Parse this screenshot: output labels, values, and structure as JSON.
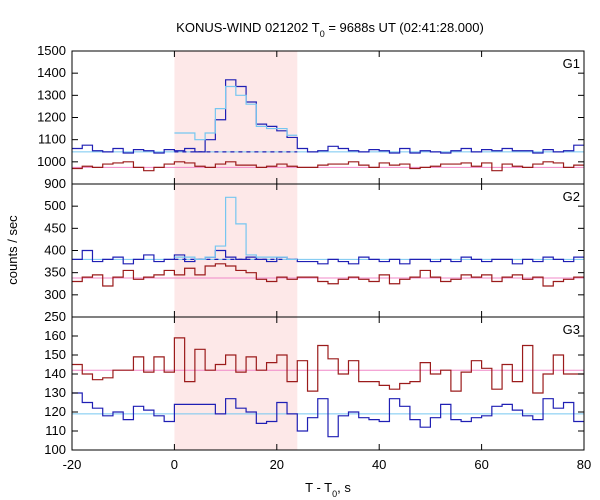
{
  "chart_data": {
    "type": "line",
    "title": {
      "prefix": "KONUS-WIND 021202 T",
      "sub": "0",
      "suffix": " = 9688s UT (02:41:28.000)"
    },
    "xlabel": {
      "prefix": "T - T",
      "sub": "0",
      "suffix": ", s"
    },
    "ylabel": "counts / sec",
    "xlim": [
      -20,
      80
    ],
    "x_ticks": [
      -20,
      0,
      20,
      40,
      60,
      80
    ],
    "highlight_interval": [
      0,
      24
    ],
    "colors": {
      "highlight": "#fde8e8",
      "dark_blue": "#1f1fb4",
      "light_blue": "#76c6f0",
      "dark_red": "#9b1b1b",
      "background_line_red": "#f088c8"
    },
    "panels": [
      {
        "name": "G1",
        "ylim": [
          900,
          1500
        ],
        "y_ticks": [
          900,
          1000,
          1100,
          1200,
          1300,
          1400,
          1500
        ],
        "background_level": 1045,
        "upper_background_level": 1045,
        "lower_background_level": 975,
        "step_x": [
          -20,
          -18,
          -16,
          -14,
          -12,
          -10,
          -8,
          -6,
          -4,
          -2,
          0,
          2,
          4,
          6,
          8,
          10,
          12,
          14,
          16,
          18,
          20,
          22,
          24,
          26,
          28,
          30,
          32,
          34,
          36,
          38,
          40,
          42,
          44,
          46,
          48,
          50,
          52,
          54,
          56,
          58,
          60,
          62,
          64,
          66,
          68,
          70,
          72,
          74,
          76,
          78,
          80
        ],
        "series": [
          {
            "name": "upper",
            "values": [
              1060,
              1075,
              1050,
              1045,
              1060,
              1040,
              1055,
              1050,
              1040,
              1055,
              1050,
              1060,
              1045,
              1100,
              1190,
              1370,
              1340,
              1270,
              1170,
              1160,
              1140,
              1110,
              1060,
              1045,
              1050,
              1070,
              1060,
              1050,
              1045,
              1055,
              1050,
              1040,
              1060,
              1040,
              1050,
              1045,
              1040,
              1050,
              1060,
              1045,
              1055,
              1050,
              1060,
              1050,
              1050,
              1040,
              1055,
              1045,
              1050,
              1075
            ]
          },
          {
            "name": "lower",
            "values": [
              970,
              980,
              975,
              990,
              995,
              1000,
              975,
              960,
              975,
              990,
              1000,
              995,
              980,
              975,
              990,
              1000,
              985,
              985,
              975,
              980,
              990,
              980,
              975,
              975,
              985,
              990,
              990,
              1000,
              985,
              975,
              995,
              985,
              990,
              970,
              975,
              980,
              990,
              990,
              995,
              980,
              995,
              960,
              990,
              980,
              975,
              990,
              1000,
              995,
              975,
              985
            ]
          },
          {
            "name": "burst",
            "interval": [
              0,
              24
            ],
            "values": [
              1130,
              1130,
              1100,
              1130,
              1240,
              1340,
              1300,
              1260,
              1160,
              1150,
              1150,
              1120
            ]
          }
        ]
      },
      {
        "name": "G2",
        "ylim": [
          250,
          550
        ],
        "y_ticks": [
          250,
          300,
          350,
          400,
          450,
          500
        ],
        "background_level": 380,
        "upper_background_level": 380,
        "lower_background_level": 338,
        "step_x": [
          -20,
          -18,
          -16,
          -14,
          -12,
          -10,
          -8,
          -6,
          -4,
          -2,
          0,
          2,
          4,
          6,
          8,
          10,
          12,
          14,
          16,
          18,
          20,
          22,
          24,
          26,
          28,
          30,
          32,
          34,
          36,
          38,
          40,
          42,
          44,
          46,
          48,
          50,
          52,
          54,
          56,
          58,
          60,
          62,
          64,
          66,
          68,
          70,
          72,
          74,
          76,
          78,
          80
        ],
        "series": [
          {
            "name": "upper",
            "values": [
              380,
              400,
              375,
              380,
              385,
              370,
              380,
              390,
              375,
              380,
              390,
              375,
              380,
              385,
              400,
              385,
              380,
              385,
              380,
              375,
              385,
              380,
              375,
              375,
              370,
              380,
              375,
              370,
              385,
              380,
              375,
              380,
              370,
              380,
              380,
              375,
              380,
              375,
              385,
              380,
              375,
              380,
              380,
              370,
              380,
              375,
              385,
              380,
              375,
              385
            ]
          },
          {
            "name": "lower",
            "values": [
              330,
              340,
              345,
              320,
              340,
              355,
              335,
              340,
              345,
              355,
              345,
              360,
              345,
              365,
              370,
              365,
              355,
              350,
              335,
              330,
              340,
              335,
              340,
              340,
              330,
              325,
              335,
              340,
              335,
              330,
              345,
              325,
              335,
              340,
              355,
              340,
              330,
              335,
              345,
              340,
              345,
              330,
              340,
              345,
              335,
              340,
              320,
              330,
              335,
              340
            ]
          },
          {
            "name": "burst",
            "interval": [
              0,
              24
            ],
            "values": [
              385,
              385,
              380,
              385,
              410,
              520,
              460,
              390,
              385,
              385,
              385,
              380
            ]
          }
        ]
      },
      {
        "name": "G3",
        "ylim": [
          100,
          170
        ],
        "y_ticks": [
          100,
          110,
          120,
          130,
          140,
          150,
          160
        ],
        "background_level": 119,
        "upper_background_level": 142,
        "lower_background_level": 119,
        "step_x": [
          -20,
          -18,
          -16,
          -14,
          -12,
          -10,
          -8,
          -6,
          -4,
          -2,
          0,
          2,
          4,
          6,
          8,
          10,
          12,
          14,
          16,
          18,
          20,
          22,
          24,
          26,
          28,
          30,
          32,
          34,
          36,
          38,
          40,
          42,
          44,
          46,
          48,
          50,
          52,
          54,
          56,
          58,
          60,
          62,
          64,
          66,
          68,
          70,
          72,
          74,
          76,
          78,
          80
        ],
        "series": [
          {
            "name": "upper",
            "values": [
              145,
              140,
              137,
              138,
              142,
              142,
              149,
              141,
              149,
              141,
              159,
              136,
              153,
              142,
              145,
              150,
              141,
              149,
              142,
              146,
              150,
              136,
              147,
              131,
              155,
              148,
              140,
              147,
              136,
              136,
              134,
              132,
              135,
              136,
              146,
              140,
              142,
              131,
              141,
              147,
              143,
              132,
              145,
              136,
              155,
              130,
              140,
              150,
              140,
              140
            ]
          },
          {
            "name": "lower",
            "values": [
              130,
              125,
              122,
              118,
              120,
              116,
              123,
              121,
              118,
              115,
              124,
              124,
              124,
              124,
              119,
              127,
              122,
              120,
              114,
              115,
              125,
              119,
              110,
              117,
              127,
              107,
              118,
              120,
              117,
              116,
              115,
              127,
              123,
              116,
              112,
              117,
              124,
              116,
              115,
              117,
              118,
              123,
              124,
              121,
              118,
              116,
              127,
              122,
              125,
              115
            ]
          }
        ]
      }
    ]
  }
}
